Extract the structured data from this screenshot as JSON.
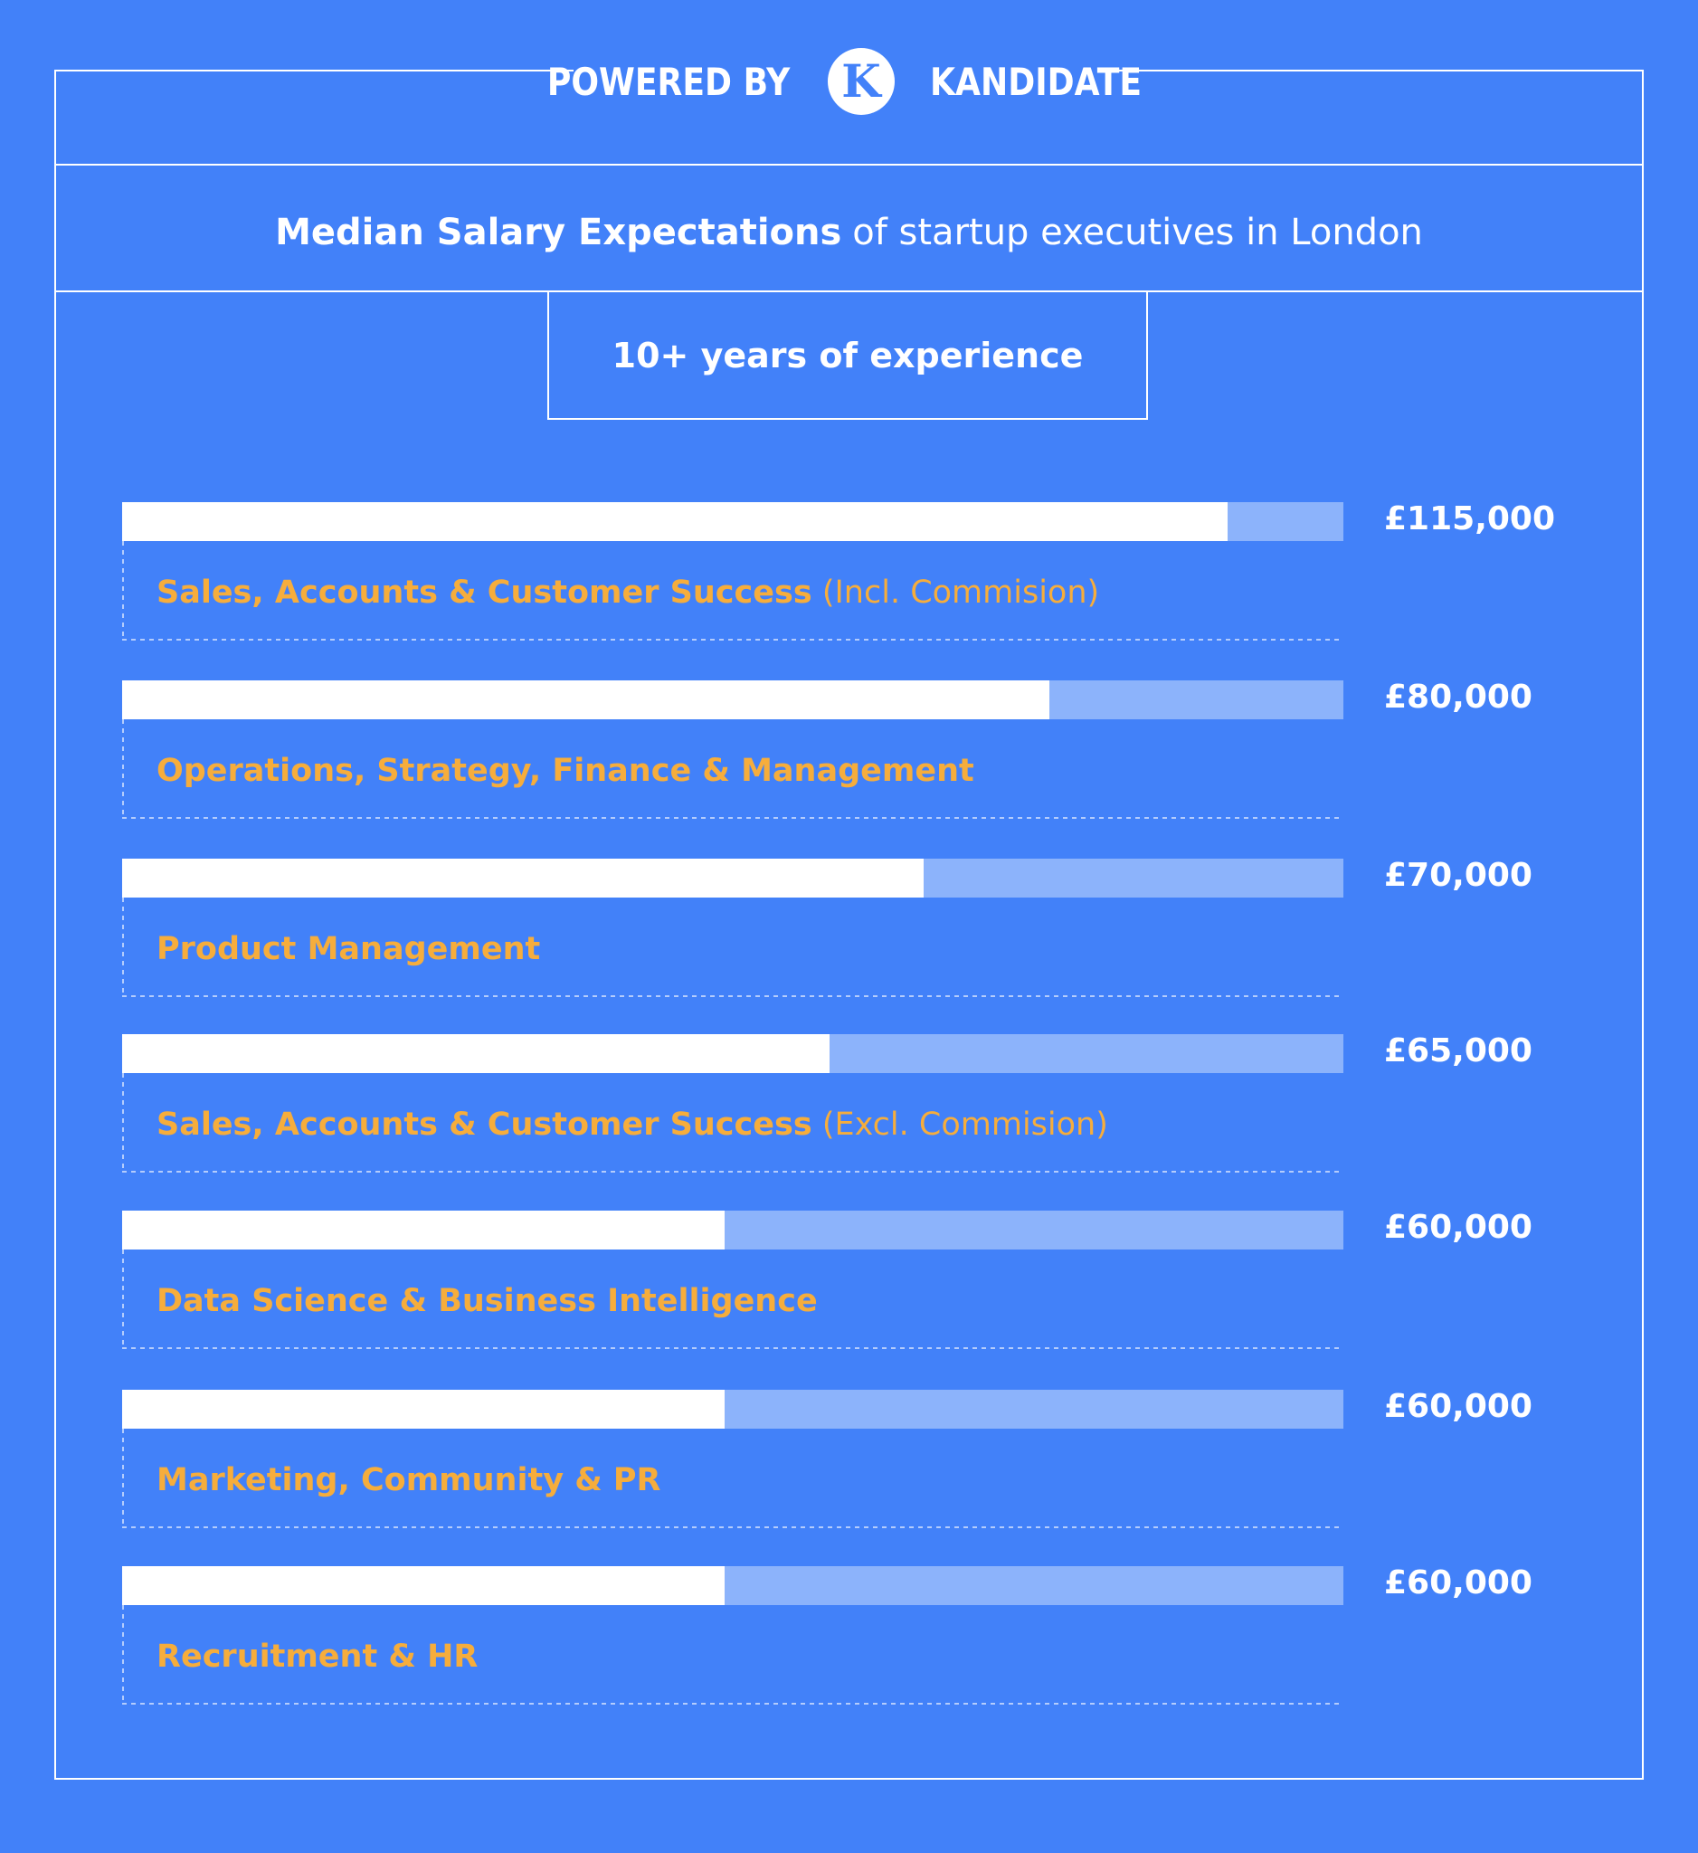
{
  "header": {
    "powered_by": "POWERED BY",
    "logo_letter": "K",
    "brand": "KANDIDATE"
  },
  "title": {
    "strong": "Median Salary Expectations",
    "light": "of startup executives in London"
  },
  "subtitle": "10+ years of experience",
  "colors": {
    "background": "#4281f9",
    "bar_fill": "#ffffff",
    "bar_track": "#8cb3fb",
    "category_label": "#f6ad3c"
  },
  "chart_data": {
    "type": "bar",
    "orientation": "horizontal",
    "categories": [
      {
        "label": "Sales, Accounts & Customer Success",
        "note": "(Incl. Commision)"
      },
      {
        "label": "Operations, Strategy, Finance & Management",
        "note": ""
      },
      {
        "label": "Product Management",
        "note": ""
      },
      {
        "label": "Sales, Accounts & Customer Success",
        "note": "(Excl. Commision)"
      },
      {
        "label": "Data Science & Business Intelligence",
        "note": ""
      },
      {
        "label": "Marketing, Community & PR",
        "note": ""
      },
      {
        "label": "Recruitment & HR",
        "note": ""
      }
    ],
    "values": [
      115000,
      80000,
      70000,
      65000,
      60000,
      60000,
      60000
    ],
    "value_labels": [
      "£115,000",
      "£80,000",
      "£70,000",
      "£65,000",
      "£60,000",
      "£60,000",
      "£60,000"
    ],
    "fill_fraction": [
      0.905,
      0.759,
      0.656,
      0.579,
      0.493,
      0.493,
      0.493
    ],
    "grid": false,
    "legend": "none"
  }
}
